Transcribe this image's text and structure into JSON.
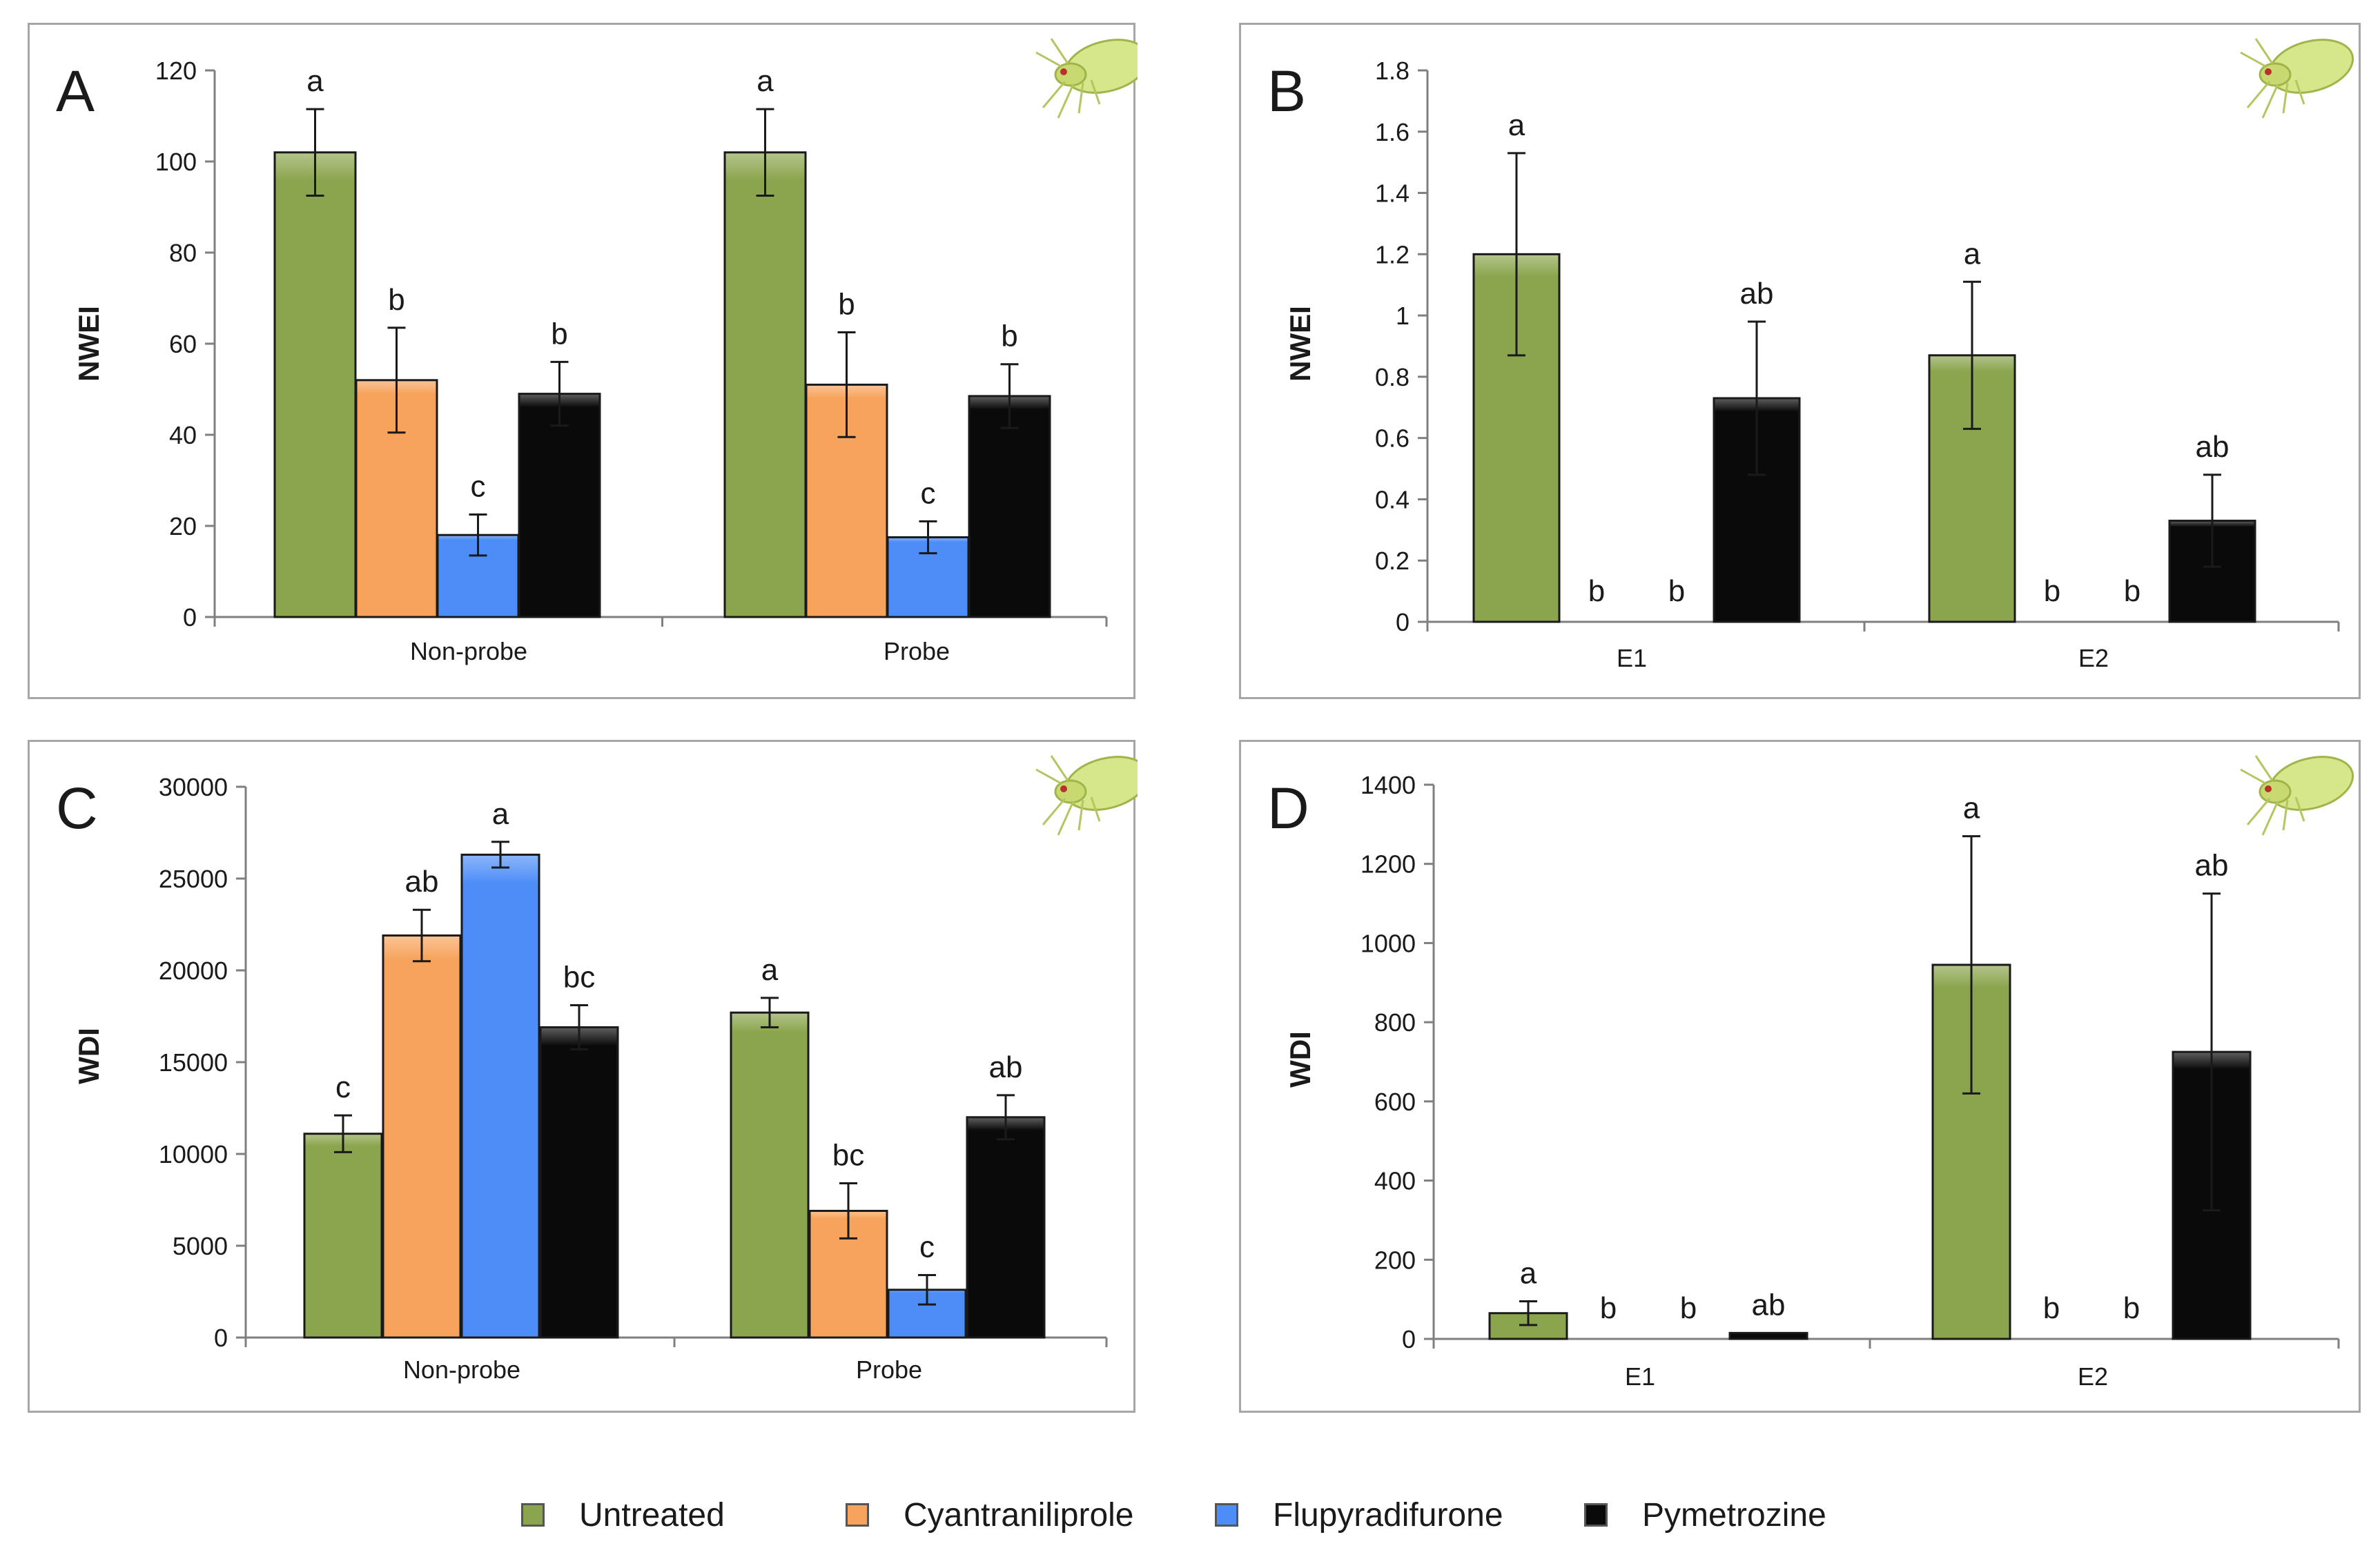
{
  "series_colors": {
    "Untreated": "#8ba54e",
    "Cyantraniliprole": "#f7a35c",
    "Flupyradifurone": "#4d8df7",
    "Pymetrozine": "#0a0a0a"
  },
  "legend": [
    {
      "label": "Untreated",
      "color": "#8ba54e"
    },
    {
      "label": "Cyantraniliprole",
      "color": "#f7a35c"
    },
    {
      "label": "Flupyradifurone",
      "color": "#4d8df7"
    },
    {
      "label": "Pymetrozine",
      "color": "#0a0a0a"
    }
  ],
  "icon": "whitefly-insect-icon",
  "chart_data": [
    {
      "id": "A",
      "panel_label": "A",
      "type": "bar",
      "ylabel": "NWEI",
      "xlabel": "",
      "ylim": [
        0,
        120
      ],
      "yticks": [
        0,
        20,
        40,
        60,
        80,
        100,
        120
      ],
      "ytick_labels": [
        "0",
        "20",
        "40",
        "60",
        "80",
        "100",
        "120"
      ],
      "categories": [
        "Non-probe",
        "Probe"
      ],
      "series": [
        {
          "name": "Untreated",
          "values": [
            102,
            102
          ],
          "errors": [
            9.5,
            9.5
          ],
          "letters": [
            "a",
            "a"
          ]
        },
        {
          "name": "Cyantraniliprole",
          "values": [
            52,
            51
          ],
          "errors": [
            11.5,
            11.5
          ],
          "letters": [
            "b",
            "b"
          ]
        },
        {
          "name": "Flupyradifurone",
          "values": [
            18,
            17.5
          ],
          "errors": [
            4.5,
            3.5
          ],
          "letters": [
            "c",
            "c"
          ]
        },
        {
          "name": "Pymetrozine",
          "values": [
            49,
            48.5
          ],
          "errors": [
            7,
            7
          ],
          "letters": [
            "b",
            "b"
          ]
        }
      ]
    },
    {
      "id": "B",
      "panel_label": "B",
      "type": "bar",
      "ylabel": "NWEI",
      "xlabel": "",
      "ylim": [
        0,
        1.8
      ],
      "yticks": [
        0,
        0.2,
        0.4,
        0.6,
        0.8,
        1.0,
        1.2,
        1.4,
        1.6,
        1.8
      ],
      "ytick_labels": [
        "0",
        "0.2",
        "0.4",
        "0.6",
        "0.8",
        "1",
        "1.2",
        "1.4",
        "1.6",
        "1.8"
      ],
      "categories": [
        "E1",
        "E2"
      ],
      "series": [
        {
          "name": "Untreated",
          "values": [
            1.2,
            0.87
          ],
          "errors": [
            0.33,
            0.24
          ],
          "letters": [
            "a",
            "a"
          ]
        },
        {
          "name": "Cyantraniliprole",
          "values": [
            0,
            0
          ],
          "errors": [
            0,
            0
          ],
          "letters": [
            "b",
            "b"
          ]
        },
        {
          "name": "Flupyradifurone",
          "values": [
            0,
            0
          ],
          "errors": [
            0,
            0
          ],
          "letters": [
            "b",
            "b"
          ]
        },
        {
          "name": "Pymetrozine",
          "values": [
            0.73,
            0.33
          ],
          "errors": [
            0.25,
            0.15
          ],
          "letters": [
            "ab",
            "ab"
          ]
        }
      ]
    },
    {
      "id": "C",
      "panel_label": "C",
      "type": "bar",
      "ylabel": "WDI",
      "xlabel": "",
      "ylim": [
        0,
        30000
      ],
      "yticks": [
        0,
        5000,
        10000,
        15000,
        20000,
        25000,
        30000
      ],
      "ytick_labels": [
        "0",
        "5000",
        "10000",
        "15000",
        "20000",
        "25000",
        "30000"
      ],
      "categories": [
        "Non-probe",
        "Probe"
      ],
      "series": [
        {
          "name": "Untreated",
          "values": [
            11100,
            17700
          ],
          "errors": [
            1000,
            800
          ],
          "letters": [
            "c",
            "a"
          ]
        },
        {
          "name": "Cyantraniliprole",
          "values": [
            21900,
            6900
          ],
          "errors": [
            1400,
            1500
          ],
          "letters": [
            "ab",
            "bc"
          ]
        },
        {
          "name": "Flupyradifurone",
          "values": [
            26300,
            2600
          ],
          "errors": [
            700,
            800
          ],
          "letters": [
            "a",
            "c"
          ]
        },
        {
          "name": "Pymetrozine",
          "values": [
            16900,
            12000
          ],
          "errors": [
            1200,
            1200
          ],
          "letters": [
            "bc",
            "ab"
          ]
        }
      ]
    },
    {
      "id": "D",
      "panel_label": "D",
      "type": "bar",
      "ylabel": "WDI",
      "xlabel": "",
      "ylim": [
        0,
        1400
      ],
      "yticks": [
        0,
        200,
        400,
        600,
        800,
        1000,
        1200,
        1400
      ],
      "ytick_labels": [
        "0",
        "200",
        "400",
        "600",
        "800",
        "1000",
        "1200",
        "1400"
      ],
      "categories": [
        "E1",
        "E2"
      ],
      "series": [
        {
          "name": "Untreated",
          "values": [
            65,
            945
          ],
          "errors": [
            30,
            325
          ],
          "letters": [
            "a",
            "a"
          ]
        },
        {
          "name": "Cyantraniliprole",
          "values": [
            0,
            0
          ],
          "errors": [
            0,
            0
          ],
          "letters": [
            "b",
            "b"
          ]
        },
        {
          "name": "Flupyradifurone",
          "values": [
            0,
            0
          ],
          "errors": [
            0,
            0
          ],
          "letters": [
            "b",
            "b"
          ]
        },
        {
          "name": "Pymetrozine",
          "values": [
            15,
            725
          ],
          "errors": [
            0,
            400
          ],
          "letters": [
            "ab",
            "ab"
          ]
        }
      ]
    }
  ]
}
